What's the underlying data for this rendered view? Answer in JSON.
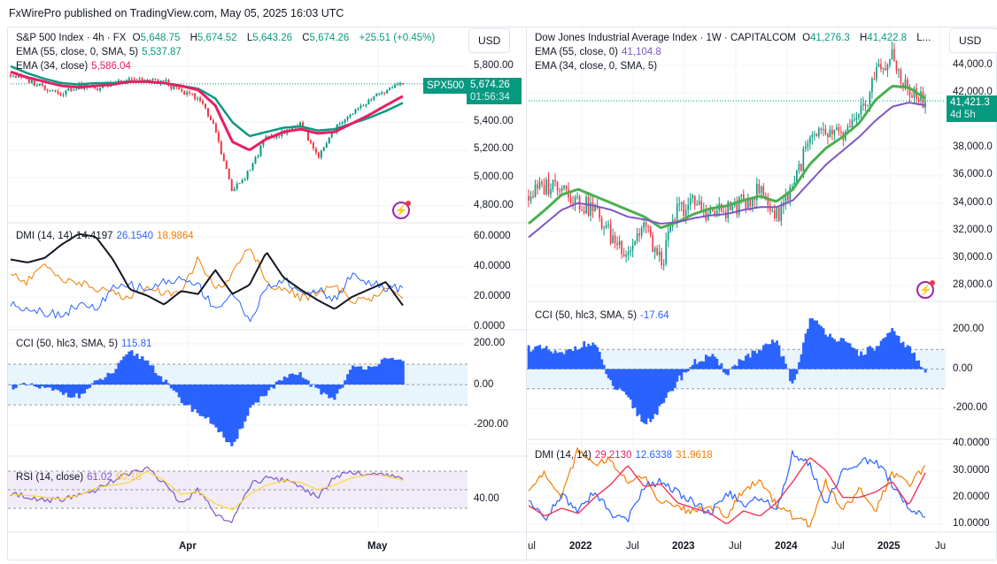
{
  "header": {
    "text": "FxWirePro published on TradingView.com, May 05, 2025 16:03 UTC"
  },
  "left": {
    "title": "S&P 500 Index · 4h · FX",
    "ohlc": {
      "o_label": "O",
      "o": "5,648.75",
      "h_label": "H",
      "h": "5,674.52",
      "l_label": "L",
      "l": "5,643.26",
      "c_label": "C",
      "c": "5,674.26",
      "change": "+25.51 (+0.45%)"
    },
    "ema1": {
      "label": "EMA (55, close, 0, SMA, 5)",
      "value": "5,537.87"
    },
    "ema2": {
      "label": "EMA (34, close)",
      "value": "5,586.04"
    },
    "currency": "USD",
    "price_axis": [
      "5,800.00",
      "5,400.00",
      "5,200.00",
      "5,000.00",
      "4,800.00"
    ],
    "symbol_tag": "SPX500",
    "price_tag": "5,674.26",
    "countdown": "01:56:34",
    "dmi": {
      "label": "DMI (14, 14)",
      "adx": "14.4197",
      "plus": "26.1540",
      "minus": "18.9864",
      "axis": [
        "60.0000",
        "40.0000",
        "20.0000",
        "0.0000"
      ]
    },
    "cci": {
      "label": "CCI (50, hlc3, SMA, 5)",
      "value": "115.81",
      "axis": [
        "200.00",
        "0.00",
        "-200.00"
      ]
    },
    "rsi": {
      "label": "RSI (14, close)",
      "value": "61.02",
      "ma": "60.18",
      "axis": [
        "40.00"
      ]
    },
    "time_axis": [
      "Apr",
      "May"
    ]
  },
  "right": {
    "title": "Dow Jones Industrial Average Index · 1W · CAPITALCOM",
    "ohlc": {
      "o_label": "O",
      "o": "41,276.3",
      "h_label": "H",
      "h": "41,422.8",
      "more": "L..."
    },
    "ema1": {
      "label": "EMA (55, close, 0)",
      "value": "41,104.8"
    },
    "ema2": {
      "label": "EMA (34, close, 0, SMA, 5)"
    },
    "currency": "USD",
    "price_axis": [
      "44,000.0",
      "42,000.0",
      "38,000.0",
      "36,000.0",
      "34,000.0",
      "32,000.0",
      "30,000.0",
      "28,000.0"
    ],
    "price_tag": "41,421.3",
    "countdown": "4d 5h",
    "cci": {
      "label": "CCI (50, hlc3, SMA, 5)",
      "value": "-17.64",
      "axis": [
        "200.00",
        "0.00",
        "-200.00"
      ]
    },
    "dmi": {
      "label": "DMI (14, 14)",
      "adx": "29.2130",
      "plus": "12.6338",
      "minus": "31.9618",
      "axis": [
        "40.0000",
        "30.0000",
        "20.0000",
        "10.0000"
      ]
    },
    "time_axis": [
      "ul",
      "2022",
      "Jul",
      "2023",
      "Jul",
      "2024",
      "Jul",
      "2025",
      "Ju"
    ]
  },
  "colors": {
    "up": "#089981",
    "down": "#f23645",
    "cci": "#2962ff",
    "rsi": "#7e57c2",
    "rsi_ma": "#fdd835",
    "adx_left": "#131722",
    "adx_right": "#f23658",
    "plus_di": "#2962ff",
    "minus_di": "#f57c00",
    "tag": "#089981"
  },
  "chart_data": [
    {
      "type": "candlestick",
      "title": "S&P 500 Index · 4h · FX",
      "ylim": [
        4750,
        5900
      ],
      "close": [
        5740,
        5700,
        5650,
        5610,
        5660,
        5640,
        5680,
        5720,
        5700,
        5690,
        5610,
        5580,
        5350,
        4900,
        5050,
        5300,
        5320,
        5400,
        5150,
        5350,
        5450,
        5550,
        5620,
        5674.26
      ],
      "series": [
        {
          "name": "EMA (55, close, 0, SMA, 5)",
          "values": [
            5800,
            5750,
            5710,
            5680,
            5670,
            5680,
            5680,
            5690,
            5690,
            5680,
            5660,
            5640,
            5570,
            5400,
            5300,
            5330,
            5360,
            5370,
            5340,
            5350,
            5390,
            5430,
            5480,
            5537.87
          ]
        },
        {
          "name": "EMA (34, close)",
          "values": [
            5760,
            5720,
            5690,
            5660,
            5650,
            5660,
            5670,
            5690,
            5690,
            5680,
            5660,
            5630,
            5520,
            5260,
            5200,
            5280,
            5330,
            5350,
            5320,
            5330,
            5390,
            5450,
            5520,
            5586.04
          ]
        }
      ],
      "x_ticks": [
        "Apr",
        "May"
      ]
    },
    {
      "type": "line",
      "title": "DMI (14, 14)",
      "ylim": [
        0,
        60
      ],
      "series": [
        {
          "name": "ADX",
          "values": [
            45,
            43,
            46,
            55,
            62,
            60,
            45,
            25,
            21,
            15,
            24,
            22,
            38,
            22,
            28,
            50,
            33,
            25,
            18,
            12,
            20,
            25,
            30,
            14.42
          ]
        },
        {
          "name": "+DI",
          "values": [
            15,
            13,
            10,
            8,
            15,
            12,
            25,
            28,
            25,
            30,
            32,
            28,
            12,
            22,
            5,
            25,
            32,
            22,
            25,
            18,
            35,
            30,
            25,
            26.15
          ]
        },
        {
          "name": "-DI",
          "values": [
            35,
            30,
            42,
            32,
            30,
            25,
            23,
            20,
            27,
            22,
            25,
            45,
            24,
            35,
            55,
            30,
            25,
            20,
            22,
            27,
            18,
            18,
            25,
            18.99
          ]
        }
      ]
    },
    {
      "type": "bar",
      "title": "CCI (50, hlc3, SMA, 5)",
      "ylim": [
        -330,
        220
      ],
      "values": [
        -10,
        -5,
        -20,
        -40,
        -60,
        10,
        60,
        160,
        120,
        20,
        -80,
        -140,
        -200,
        -320,
        -120,
        -40,
        30,
        50,
        -30,
        -70,
        80,
        90,
        120,
        115.81
      ]
    },
    {
      "type": "line",
      "title": "RSI (14, close)",
      "series": [
        {
          "name": "RSI",
          "values": [
            45,
            43,
            38,
            40,
            45,
            50,
            60,
            68,
            72,
            58,
            35,
            50,
            25,
            15,
            55,
            62,
            60,
            52,
            42,
            65,
            68,
            66,
            65,
            61.02
          ]
        },
        {
          "name": "MA",
          "values": [
            45,
            44,
            42,
            40,
            44,
            52,
            55,
            58,
            70,
            60,
            45,
            48,
            35,
            28,
            45,
            55,
            60,
            58,
            50,
            55,
            63,
            66,
            65,
            60.18
          ]
        }
      ]
    },
    {
      "type": "candlestick",
      "title": "Dow Jones Industrial Average Index · 1W · CAPITALCOM",
      "ylim": [
        27500,
        45500
      ],
      "close": [
        34500,
        35200,
        35500,
        34000,
        33500,
        31500,
        30500,
        32500,
        29500,
        33500,
        34000,
        33200,
        33500,
        34000,
        35000,
        33000,
        35500,
        38500,
        39000,
        38800,
        40000,
        43500,
        44500,
        42000,
        41421.3
      ],
      "series": [
        {
          "name": "EMA (55, close, 0)",
          "values": [
            31500,
            32500,
            33500,
            34000,
            33800,
            33500,
            33000,
            32800,
            32500,
            32600,
            32900,
            33100,
            33200,
            33500,
            33700,
            33700,
            34200,
            35500,
            36800,
            37800,
            38800,
            40000,
            41000,
            41300,
            41104.8
          ]
        },
        {
          "name": "EMA (34, close, 0, SMA, 5)",
          "values": [
            32500,
            33500,
            34600,
            35000,
            34500,
            34000,
            33500,
            33000,
            32200,
            32600,
            33200,
            33600,
            33800,
            34200,
            34500,
            34100,
            35000,
            36800,
            38000,
            38800,
            39800,
            41500,
            42500,
            42400,
            41600
          ]
        }
      ],
      "x_ticks": [
        "Jul",
        "2022",
        "Jul",
        "2023",
        "Jul",
        "2024",
        "Jul",
        "2025",
        "Jun"
      ]
    },
    {
      "type": "bar",
      "title": "CCI (50, hlc3, SMA, 5)",
      "ylim": [
        -330,
        280
      ],
      "values": [
        110,
        100,
        70,
        120,
        130,
        -80,
        -150,
        -280,
        -200,
        -60,
        30,
        70,
        -20,
        60,
        90,
        150,
        -90,
        260,
        190,
        140,
        80,
        110,
        190,
        110,
        -17.64
      ]
    },
    {
      "type": "line",
      "title": "DMI (14, 14)",
      "ylim": [
        8,
        40
      ],
      "series": [
        {
          "name": "ADX",
          "values": [
            17,
            13,
            16,
            14,
            20,
            25,
            32,
            24,
            25,
            18,
            16,
            14,
            10,
            15,
            13,
            18,
            26,
            35,
            30,
            20,
            20,
            22,
            26,
            17,
            29.21
          ]
        },
        {
          "name": "+DI",
          "values": [
            20,
            12,
            21,
            15,
            22,
            14,
            12,
            24,
            26,
            22,
            18,
            14,
            22,
            17,
            20,
            15,
            37,
            32,
            17,
            30,
            33,
            34,
            25,
            16,
            12.63
          ]
        },
        {
          "name": "-DI",
          "values": [
            22,
            29,
            20,
            38,
            32,
            34,
            26,
            28,
            18,
            16,
            15,
            17,
            13,
            23,
            26,
            17,
            13,
            10,
            26,
            15,
            23,
            15,
            29,
            24,
            31.96
          ]
        }
      ]
    }
  ]
}
